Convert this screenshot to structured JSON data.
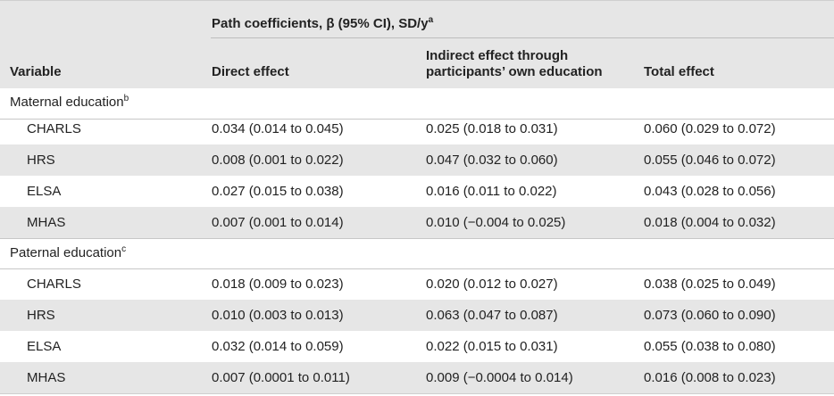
{
  "table": {
    "group_header": "Path coefficients, β (95% CI), SD/y",
    "group_header_sup": "a",
    "columns": {
      "variable": "Variable",
      "direct": "Direct effect",
      "indirect_line1": "Indirect effect through",
      "indirect_line2": "participants’ own education",
      "total": "Total effect"
    },
    "maternal": {
      "label": "Maternal education",
      "sup": "b",
      "rows": [
        {
          "name": "CHARLS",
          "direct": "0.034 (0.014 to 0.045)",
          "indirect": "0.025 (0.018 to 0.031)",
          "total": "0.060 (0.029 to 0.072)"
        },
        {
          "name": "HRS",
          "direct": "0.008 (0.001 to 0.022)",
          "indirect": "0.047 (0.032 to 0.060)",
          "total": "0.055 (0.046 to 0.072)"
        },
        {
          "name": "ELSA",
          "direct": "0.027 (0.015 to 0.038)",
          "indirect": "0.016 (0.011 to 0.022)",
          "total": "0.043 (0.028 to 0.056)"
        },
        {
          "name": "MHAS",
          "direct": "0.007 (0.001 to 0.014)",
          "indirect": "0.010 (−0.004 to 0.025)",
          "total": "0.018 (0.004 to 0.032)"
        }
      ]
    },
    "paternal": {
      "label": "Paternal education",
      "sup": "c",
      "rows": [
        {
          "name": "CHARLS",
          "direct": "0.018 (0.009 to 0.023)",
          "indirect": "0.020 (0.012 to 0.027)",
          "total": "0.038 (0.025 to 0.049)"
        },
        {
          "name": "HRS",
          "direct": "0.010 (0.003 to 0.013)",
          "indirect": "0.063 (0.047 to 0.087)",
          "total": "0.073 (0.060 to 0.090)"
        },
        {
          "name": "ELSA",
          "direct": "0.032 (0.014 to 0.059)",
          "indirect": "0.022 (0.015 to 0.031)",
          "total": "0.055 (0.038 to 0.080)"
        },
        {
          "name": "MHAS",
          "direct": "0.007 (0.0001 to 0.011)",
          "indirect": "0.009 (−0.0004 to 0.014)",
          "total": "0.016 (0.008 to 0.023)"
        }
      ]
    }
  }
}
